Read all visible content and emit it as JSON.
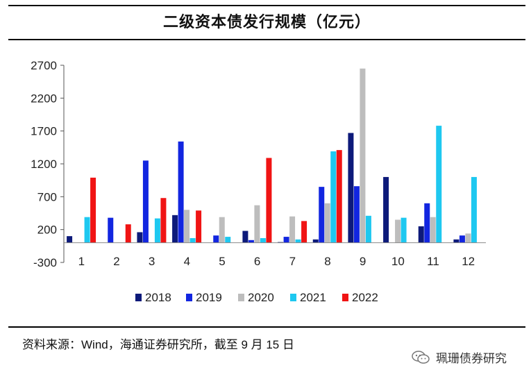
{
  "header": {
    "title": "二级资本债发行规模（亿元）"
  },
  "footer": {
    "source": "资料来源：Wind，海通证券研究所，截至 9 月 15 日",
    "watermark": "珮珊债券研究",
    "watermark_icon": "wechat-icon"
  },
  "chart_data": {
    "type": "bar",
    "title": "二级资本债发行规模（亿元）",
    "xlabel": "",
    "ylabel": "",
    "ylim": [
      -300,
      2700
    ],
    "yticks": [
      -300,
      200,
      700,
      1200,
      1700,
      2200,
      2700
    ],
    "ytick_labels": [
      "-300",
      "200",
      "700",
      "1200",
      "1700",
      "2200",
      "2700"
    ],
    "categories": [
      "1",
      "2",
      "3",
      "4",
      "5",
      "6",
      "7",
      "8",
      "9",
      "10",
      "11",
      "12"
    ],
    "grid": false,
    "legend_position": "bottom",
    "series": [
      {
        "name": "2018",
        "color": "#0d1a7a",
        "values": [
          100,
          0,
          160,
          420,
          0,
          180,
          10,
          50,
          1670,
          1000,
          250,
          50
        ]
      },
      {
        "name": "2019",
        "color": "#1226e0",
        "values": [
          0,
          380,
          1250,
          1540,
          110,
          40,
          90,
          850,
          860,
          0,
          600,
          110
        ]
      },
      {
        "name": "2020",
        "color": "#bdbdbd",
        "values": [
          0,
          0,
          0,
          500,
          390,
          570,
          400,
          600,
          2650,
          350,
          390,
          140
        ]
      },
      {
        "name": "2021",
        "color": "#1ec8f0",
        "values": [
          390,
          0,
          370,
          70,
          90,
          70,
          50,
          1390,
          410,
          380,
          1780,
          1000
        ]
      },
      {
        "name": "2022",
        "color": "#f01414",
        "values": [
          990,
          280,
          680,
          490,
          0,
          1290,
          330,
          1410,
          0,
          0,
          0,
          0
        ]
      }
    ]
  }
}
